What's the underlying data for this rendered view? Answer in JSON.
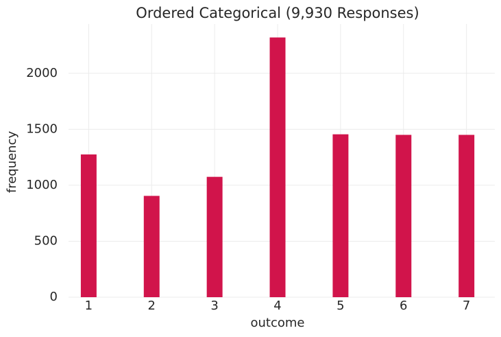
{
  "chart_data": {
    "type": "bar",
    "title": "Ordered Categorical (9,930 Responses)",
    "x_label": "outcome",
    "y_label": "frequency",
    "x": [
      1,
      2,
      3,
      4,
      5,
      6,
      7
    ],
    "values": [
      1275,
      905,
      1075,
      2320,
      1455,
      1450,
      1450
    ],
    "color": "#d1144b",
    "bar_width": 0.25,
    "xlim": [
      0.68,
      7.45
    ],
    "xticks": [
      1,
      2,
      3,
      4,
      5,
      6,
      7
    ],
    "ylim": [
      0,
      2440
    ],
    "yticks": [
      0,
      500,
      1000,
      1500,
      2000
    ],
    "grid": true
  }
}
